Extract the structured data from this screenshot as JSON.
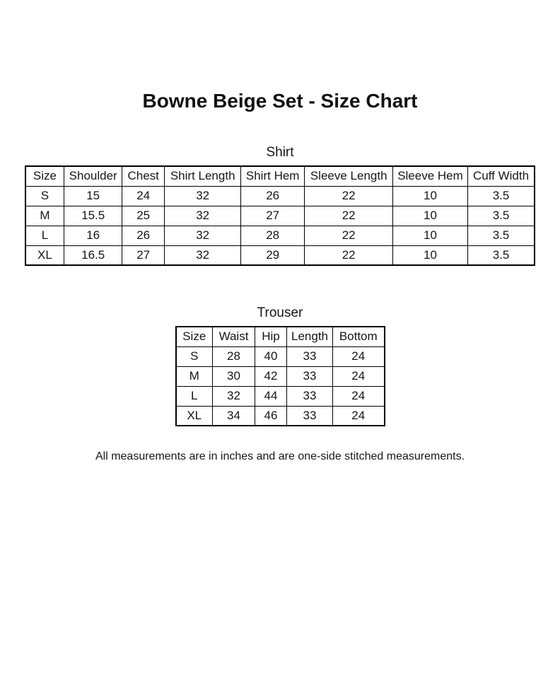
{
  "page": {
    "title": "Bowne Beige Set - Size Chart",
    "footnote": "All measurements are in inches and are one-side stitched measurements."
  },
  "colors": {
    "background": "#ffffff",
    "text": "#161616",
    "table_border": "#000000"
  },
  "chart_data": [
    {
      "type": "table",
      "title": "Shirt",
      "columns": [
        "Size",
        "Shoulder",
        "Chest",
        "Shirt Length",
        "Shirt Hem",
        "Sleeve Length",
        "Sleeve Hem",
        "Cuff Width"
      ],
      "rows": [
        [
          "S",
          "15",
          "24",
          "32",
          "26",
          "22",
          "10",
          "3.5"
        ],
        [
          "M",
          "15.5",
          "25",
          "32",
          "27",
          "22",
          "10",
          "3.5"
        ],
        [
          "L",
          "16",
          "26",
          "32",
          "28",
          "22",
          "10",
          "3.5"
        ],
        [
          "XL",
          "16.5",
          "27",
          "32",
          "29",
          "22",
          "10",
          "3.5"
        ]
      ]
    },
    {
      "type": "table",
      "title": "Trouser",
      "columns": [
        "Size",
        "Waist",
        "Hip",
        "Length",
        "Bottom"
      ],
      "rows": [
        [
          "S",
          "28",
          "40",
          "33",
          "24"
        ],
        [
          "M",
          "30",
          "42",
          "33",
          "24"
        ],
        [
          "L",
          "32",
          "44",
          "33",
          "24"
        ],
        [
          "XL",
          "34",
          "46",
          "33",
          "24"
        ]
      ]
    }
  ]
}
